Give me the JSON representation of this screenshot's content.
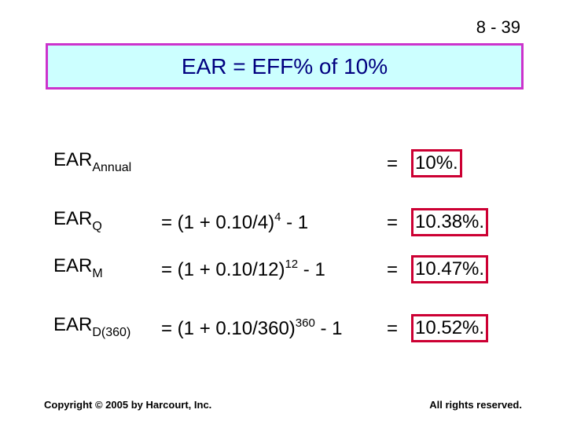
{
  "slide_number": "8 - 39",
  "title": "EAR = EFF% of 10%",
  "rows": [
    {
      "label": "EAR",
      "label_sub": "Annual",
      "formula_pre": "",
      "formula_exp": "",
      "formula_post": "",
      "equals": "=",
      "result": "10%."
    },
    {
      "label": "EAR",
      "label_sub": "Q",
      "formula_pre": "= (1 + 0.10/4)",
      "formula_exp": "4",
      "formula_post": " - 1",
      "equals": "=",
      "result": "10.38%."
    },
    {
      "label": "EAR",
      "label_sub": "M",
      "formula_pre": "= (1 + 0.10/12)",
      "formula_exp": "12",
      "formula_post": " - 1",
      "equals": "=",
      "result": "10.47%."
    },
    {
      "label": "EAR",
      "label_sub": "D(360)",
      "formula_pre": "= (1 + 0.10/360)",
      "formula_exp": "360",
      "formula_post": " - 1",
      "equals": "=",
      "result": "10.52%."
    }
  ],
  "footer": {
    "copyright": "Copyright © 2005 by Harcourt, Inc.",
    "rights": "All rights reserved."
  },
  "colors": {
    "title_bg": "#ccffff",
    "title_border": "#cc33cc",
    "title_text": "#000080",
    "result_border": "#cc0033"
  }
}
